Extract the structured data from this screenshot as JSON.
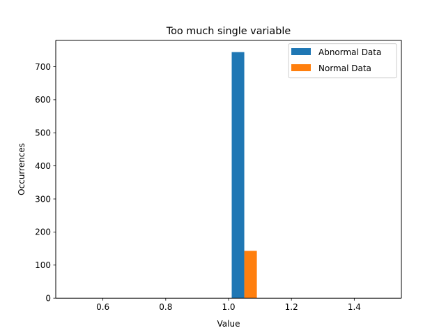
{
  "chart_data": {
    "type": "bar",
    "title": "Too much single variable",
    "xlabel": "Value",
    "ylabel": "Occurrences",
    "xlim": [
      0.45,
      1.55
    ],
    "ylim": [
      0,
      780
    ],
    "xticks": [
      0.6,
      0.8,
      1.0,
      1.2,
      1.4
    ],
    "xtick_labels": [
      "0.6",
      "0.8",
      "1.0",
      "1.2",
      "1.4"
    ],
    "yticks": [
      0,
      100,
      200,
      300,
      400,
      500,
      600,
      700
    ],
    "ytick_labels": [
      "0",
      "100",
      "200",
      "300",
      "400",
      "500",
      "600",
      "700"
    ],
    "grid": false,
    "legend_position": "upper right",
    "bar_width": 0.04,
    "series": [
      {
        "name": "Abnormal Data",
        "color": "#1f77b4",
        "x": [
          1.03
        ],
        "values": [
          744
        ]
      },
      {
        "name": "Normal Data",
        "color": "#ff7f0e",
        "x": [
          1.07
        ],
        "values": [
          143
        ]
      }
    ]
  }
}
